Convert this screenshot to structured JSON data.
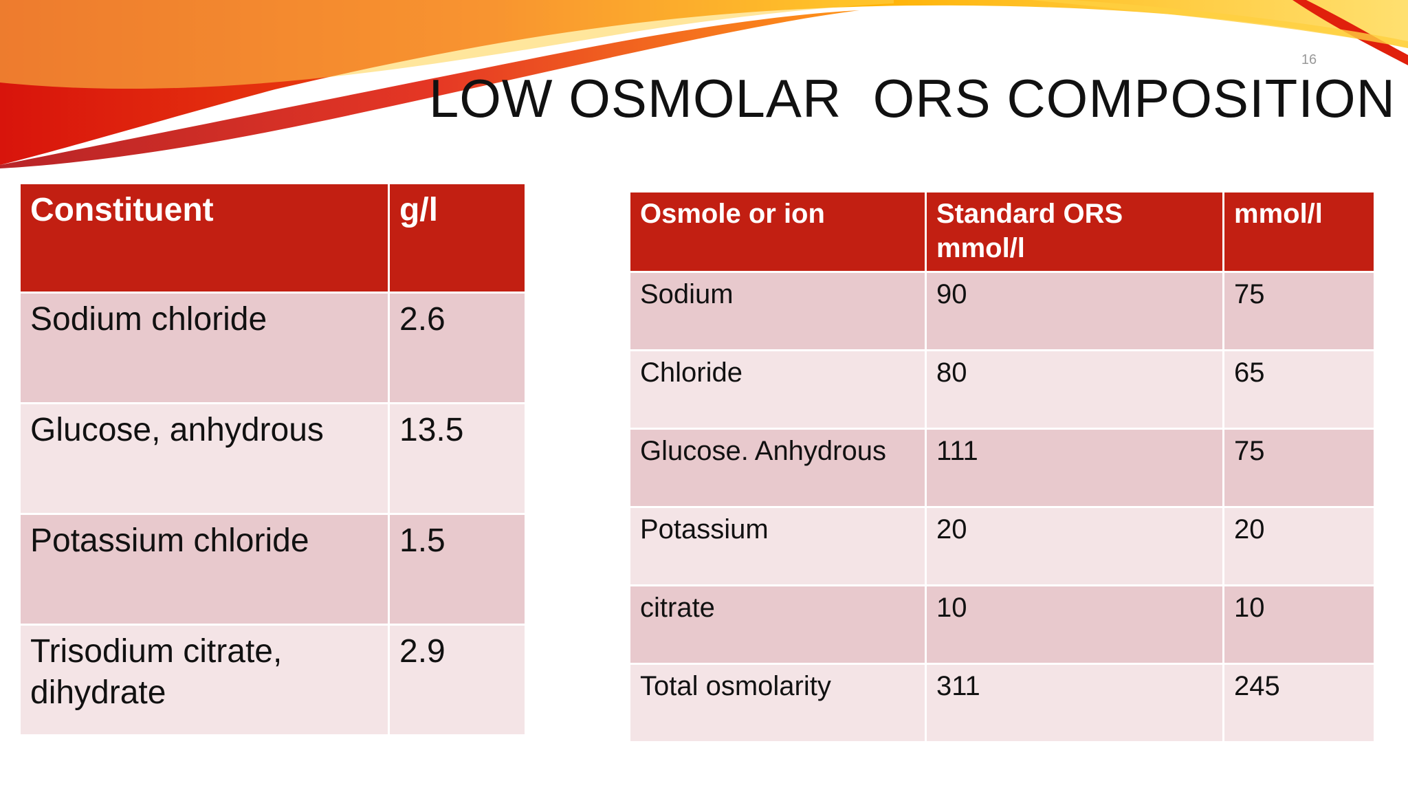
{
  "slide_number": "16",
  "title": "LOW OSMOLAR  ORS COMPOSITION",
  "left_table": {
    "header": [
      "Constituent",
      "g/l"
    ],
    "rows": [
      [
        "Sodium chloride",
        "2.6"
      ],
      [
        "Glucose, anhydrous",
        "13.5"
      ],
      [
        "Potassium chloride",
        "1.5"
      ],
      [
        "Trisodium citrate, dihydrate",
        "2.9"
      ]
    ]
  },
  "right_table": {
    "header": [
      "Osmole or ion",
      "Standard ORS mmol/l",
      "mmol/l"
    ],
    "rows": [
      [
        "Sodium",
        "90",
        "75"
      ],
      [
        "Chloride",
        "80",
        "65"
      ],
      [
        "Glucose. Anhydrous",
        "111",
        "75"
      ],
      [
        "Potassium",
        "20",
        "20"
      ],
      [
        "citrate",
        "10",
        "10"
      ],
      [
        "Total osmolarity",
        "311",
        "245"
      ]
    ]
  }
}
